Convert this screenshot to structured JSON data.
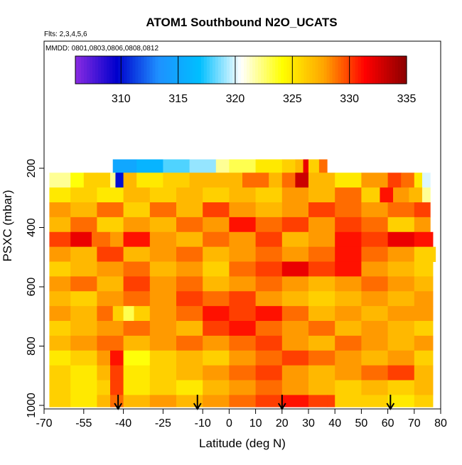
{
  "chart_data": {
    "type": "heatmap",
    "title": "ATOM1 Southbound N2O_UCATS",
    "annotations": [
      "Flts: 2,3,4,5,6",
      "MMDD: 0801,0803,0806,0808,0812"
    ],
    "xlabel": "Latitude (deg N)",
    "ylabel": "PSXC (mbar)",
    "xlim": [
      -70,
      80
    ],
    "ylim": [
      1000,
      50
    ],
    "x_ticks": [
      -70,
      -55,
      -40,
      -25,
      -10,
      0,
      10,
      20,
      30,
      40,
      50,
      60,
      70,
      80
    ],
    "y_ticks": [
      200,
      400,
      600,
      800,
      1000
    ],
    "colorbar": {
      "min": 306,
      "max": 335,
      "ticks": [
        310,
        315,
        320,
        325,
        330,
        335
      ],
      "colors": [
        "#8a2be2",
        "#0000cd",
        "#1e90ff",
        "#00bfff",
        "#ffffff",
        "#ffff00",
        "#ffa500",
        "#ff0000",
        "#8b0000"
      ]
    },
    "vertical_markers_lat": [
      -42,
      -12,
      20,
      61
    ],
    "layers": [
      {
        "p_top": 170,
        "p_bot": 215,
        "lat_min": -44,
        "lat_max": 37,
        "values": [
          [
            -44,
            315
          ],
          [
            -35,
            316
          ],
          [
            -25,
            318
          ],
          [
            -15,
            319
          ],
          [
            -5,
            322
          ],
          [
            0,
            323
          ],
          [
            10,
            325
          ],
          [
            20,
            326
          ],
          [
            25,
            327
          ],
          [
            28,
            332
          ],
          [
            30,
            326
          ],
          [
            34,
            329
          ],
          [
            37,
            329
          ]
        ]
      },
      {
        "p_top": 215,
        "p_bot": 265,
        "lat_min": -68,
        "lat_max": 76,
        "values": [
          [
            -68,
            322
          ],
          [
            -60,
            324
          ],
          [
            -55,
            326
          ],
          [
            -50,
            326
          ],
          [
            -45,
            322
          ],
          [
            -43,
            310
          ],
          [
            -40,
            327
          ],
          [
            -35,
            325
          ],
          [
            -25,
            326
          ],
          [
            -15,
            327
          ],
          [
            -5,
            327
          ],
          [
            5,
            329
          ],
          [
            15,
            327
          ],
          [
            20,
            329
          ],
          [
            25,
            333
          ],
          [
            30,
            327
          ],
          [
            40,
            325
          ],
          [
            50,
            328
          ],
          [
            60,
            330
          ],
          [
            65,
            329
          ],
          [
            70,
            325
          ],
          [
            73,
            320
          ],
          [
            76,
            315
          ]
        ]
      },
      {
        "p_top": 265,
        "p_bot": 315,
        "lat_min": -68,
        "lat_max": 76,
        "values": [
          [
            -68,
            325
          ],
          [
            -60,
            326
          ],
          [
            -50,
            325
          ],
          [
            -40,
            327
          ],
          [
            -30,
            326
          ],
          [
            -20,
            327
          ],
          [
            -10,
            326
          ],
          [
            0,
            327
          ],
          [
            10,
            326
          ],
          [
            20,
            328
          ],
          [
            30,
            327
          ],
          [
            40,
            329
          ],
          [
            50,
            326
          ],
          [
            57,
            331
          ],
          [
            62,
            328
          ],
          [
            68,
            327
          ],
          [
            73,
            322
          ],
          [
            76,
            318
          ]
        ]
      },
      {
        "p_top": 315,
        "p_bot": 365,
        "lat_min": -68,
        "lat_max": 76,
        "values": [
          [
            -68,
            328
          ],
          [
            -60,
            327
          ],
          [
            -50,
            329
          ],
          [
            -40,
            326
          ],
          [
            -30,
            329
          ],
          [
            -20,
            327
          ],
          [
            -10,
            330
          ],
          [
            0,
            328
          ],
          [
            10,
            327
          ],
          [
            20,
            328
          ],
          [
            30,
            330
          ],
          [
            40,
            329
          ],
          [
            50,
            328
          ],
          [
            60,
            329
          ],
          [
            70,
            330
          ],
          [
            76,
            330
          ]
        ]
      },
      {
        "p_top": 365,
        "p_bot": 415,
        "lat_min": -68,
        "lat_max": 76,
        "values": [
          [
            -68,
            327
          ],
          [
            -60,
            329
          ],
          [
            -50,
            326
          ],
          [
            -40,
            328
          ],
          [
            -30,
            327
          ],
          [
            -20,
            329
          ],
          [
            -10,
            328
          ],
          [
            0,
            331
          ],
          [
            10,
            329
          ],
          [
            20,
            330
          ],
          [
            30,
            328
          ],
          [
            40,
            330
          ],
          [
            50,
            329
          ],
          [
            60,
            326
          ],
          [
            70,
            328
          ],
          [
            76,
            328
          ]
        ]
      },
      {
        "p_top": 415,
        "p_bot": 465,
        "lat_min": -68,
        "lat_max": 77,
        "values": [
          [
            -68,
            330
          ],
          [
            -60,
            332
          ],
          [
            -52,
            329
          ],
          [
            -45,
            328
          ],
          [
            -40,
            331
          ],
          [
            -30,
            328
          ],
          [
            -20,
            327
          ],
          [
            -10,
            329
          ],
          [
            0,
            328
          ],
          [
            10,
            330
          ],
          [
            20,
            327
          ],
          [
            30,
            328
          ],
          [
            40,
            331
          ],
          [
            50,
            330
          ],
          [
            60,
            332
          ],
          [
            70,
            331
          ],
          [
            77,
            329
          ]
        ]
      },
      {
        "p_top": 465,
        "p_bot": 515,
        "lat_min": -68,
        "lat_max": 78,
        "values": [
          [
            -68,
            328
          ],
          [
            -60,
            327
          ],
          [
            -50,
            330
          ],
          [
            -40,
            327
          ],
          [
            -30,
            328
          ],
          [
            -20,
            329
          ],
          [
            -10,
            327
          ],
          [
            0,
            328
          ],
          [
            10,
            329
          ],
          [
            20,
            328
          ],
          [
            30,
            329
          ],
          [
            40,
            331
          ],
          [
            50,
            329
          ],
          [
            60,
            328
          ],
          [
            70,
            326
          ],
          [
            78,
            327
          ]
        ]
      },
      {
        "p_top": 515,
        "p_bot": 565,
        "lat_min": -68,
        "lat_max": 77,
        "values": [
          [
            -68,
            326
          ],
          [
            -60,
            327
          ],
          [
            -50,
            328
          ],
          [
            -40,
            329
          ],
          [
            -30,
            327
          ],
          [
            -20,
            328
          ],
          [
            -10,
            326
          ],
          [
            0,
            329
          ],
          [
            10,
            330
          ],
          [
            20,
            332
          ],
          [
            30,
            330
          ],
          [
            40,
            331
          ],
          [
            50,
            328
          ],
          [
            60,
            327
          ],
          [
            70,
            326
          ],
          [
            77,
            326
          ]
        ]
      },
      {
        "p_top": 565,
        "p_bot": 615,
        "lat_min": -68,
        "lat_max": 77,
        "values": [
          [
            -68,
            328
          ],
          [
            -60,
            329
          ],
          [
            -50,
            327
          ],
          [
            -40,
            330
          ],
          [
            -30,
            328
          ],
          [
            -20,
            329
          ],
          [
            -10,
            327
          ],
          [
            0,
            328
          ],
          [
            10,
            329
          ],
          [
            20,
            328
          ],
          [
            30,
            327
          ],
          [
            40,
            328
          ],
          [
            50,
            329
          ],
          [
            60,
            328
          ],
          [
            70,
            327
          ],
          [
            77,
            328
          ]
        ]
      },
      {
        "p_top": 615,
        "p_bot": 665,
        "lat_min": -68,
        "lat_max": 77,
        "values": [
          [
            -68,
            327
          ],
          [
            -60,
            326
          ],
          [
            -50,
            328
          ],
          [
            -40,
            329
          ],
          [
            -30,
            328
          ],
          [
            -20,
            330
          ],
          [
            -10,
            329
          ],
          [
            0,
            330
          ],
          [
            10,
            328
          ],
          [
            20,
            327
          ],
          [
            30,
            326
          ],
          [
            40,
            327
          ],
          [
            50,
            328
          ],
          [
            60,
            327
          ],
          [
            70,
            328
          ],
          [
            77,
            327
          ]
        ]
      },
      {
        "p_top": 665,
        "p_bot": 715,
        "lat_min": -68,
        "lat_max": 77,
        "values": [
          [
            -68,
            328
          ],
          [
            -60,
            327
          ],
          [
            -50,
            329
          ],
          [
            -44,
            326
          ],
          [
            -40,
            323
          ],
          [
            -36,
            326
          ],
          [
            -30,
            328
          ],
          [
            -20,
            329
          ],
          [
            -10,
            331
          ],
          [
            0,
            330
          ],
          [
            10,
            331
          ],
          [
            20,
            329
          ],
          [
            30,
            327
          ],
          [
            40,
            328
          ],
          [
            50,
            327
          ],
          [
            60,
            328
          ],
          [
            70,
            328
          ],
          [
            77,
            327
          ]
        ]
      },
      {
        "p_top": 715,
        "p_bot": 765,
        "lat_min": -68,
        "lat_max": 77,
        "values": [
          [
            -68,
            326
          ],
          [
            -60,
            327
          ],
          [
            -50,
            328
          ],
          [
            -40,
            329
          ],
          [
            -30,
            328
          ],
          [
            -20,
            327
          ],
          [
            -10,
            330
          ],
          [
            0,
            331
          ],
          [
            10,
            329
          ],
          [
            20,
            328
          ],
          [
            30,
            329
          ],
          [
            40,
            327
          ],
          [
            50,
            328
          ],
          [
            60,
            327
          ],
          [
            70,
            326
          ],
          [
            77,
            327
          ]
        ]
      },
      {
        "p_top": 765,
        "p_bot": 815,
        "lat_min": -68,
        "lat_max": 77,
        "values": [
          [
            -68,
            327
          ],
          [
            -60,
            328
          ],
          [
            -50,
            329
          ],
          [
            -40,
            327
          ],
          [
            -30,
            328
          ],
          [
            -20,
            329
          ],
          [
            -10,
            328
          ],
          [
            0,
            329
          ],
          [
            10,
            330
          ],
          [
            20,
            328
          ],
          [
            30,
            327
          ],
          [
            40,
            329
          ],
          [
            50,
            328
          ],
          [
            60,
            327
          ],
          [
            70,
            328
          ],
          [
            77,
            327
          ]
        ]
      },
      {
        "p_top": 815,
        "p_bot": 865,
        "lat_min": -68,
        "lat_max": 77,
        "values": [
          [
            -68,
            325
          ],
          [
            -60,
            326
          ],
          [
            -50,
            328
          ],
          [
            -45,
            331
          ],
          [
            -40,
            324
          ],
          [
            -30,
            326
          ],
          [
            -20,
            327
          ],
          [
            -10,
            326
          ],
          [
            0,
            328
          ],
          [
            10,
            329
          ],
          [
            20,
            330
          ],
          [
            30,
            329
          ],
          [
            40,
            328
          ],
          [
            50,
            327
          ],
          [
            60,
            328
          ],
          [
            70,
            326
          ],
          [
            77,
            326
          ]
        ]
      },
      {
        "p_top": 865,
        "p_bot": 915,
        "lat_min": -68,
        "lat_max": 77,
        "values": [
          [
            -68,
            326
          ],
          [
            -60,
            325
          ],
          [
            -50,
            327
          ],
          [
            -45,
            330
          ],
          [
            -40,
            325
          ],
          [
            -30,
            326
          ],
          [
            -20,
            327
          ],
          [
            -10,
            328
          ],
          [
            0,
            329
          ],
          [
            10,
            330
          ],
          [
            20,
            328
          ],
          [
            30,
            327
          ],
          [
            40,
            328
          ],
          [
            50,
            329
          ],
          [
            60,
            330
          ],
          [
            70,
            327
          ],
          [
            77,
            326
          ]
        ]
      },
      {
        "p_top": 915,
        "p_bot": 965,
        "lat_min": -68,
        "lat_max": 77,
        "values": [
          [
            -68,
            326
          ],
          [
            -60,
            325
          ],
          [
            -50,
            326
          ],
          [
            -45,
            330
          ],
          [
            -40,
            325
          ],
          [
            -30,
            326
          ],
          [
            -20,
            325
          ],
          [
            -10,
            327
          ],
          [
            0,
            328
          ],
          [
            10,
            329
          ],
          [
            20,
            328
          ],
          [
            30,
            327
          ],
          [
            40,
            326
          ],
          [
            50,
            327
          ],
          [
            60,
            326
          ],
          [
            70,
            327
          ],
          [
            77,
            326
          ]
        ]
      },
      {
        "p_top": 965,
        "p_bot": 1005,
        "lat_min": -68,
        "lat_max": 77,
        "values": [
          [
            -68,
            326
          ],
          [
            -60,
            325
          ],
          [
            -50,
            327
          ],
          [
            -45,
            329
          ],
          [
            -40,
            327
          ],
          [
            -30,
            328
          ],
          [
            -20,
            327
          ],
          [
            -10,
            328
          ],
          [
            0,
            329
          ],
          [
            10,
            330
          ],
          [
            20,
            331
          ],
          [
            30,
            330
          ],
          [
            37,
            330
          ],
          [
            40,
            326
          ],
          [
            50,
            326
          ],
          [
            60,
            325
          ],
          [
            70,
            326
          ],
          [
            77,
            325
          ]
        ]
      }
    ]
  }
}
